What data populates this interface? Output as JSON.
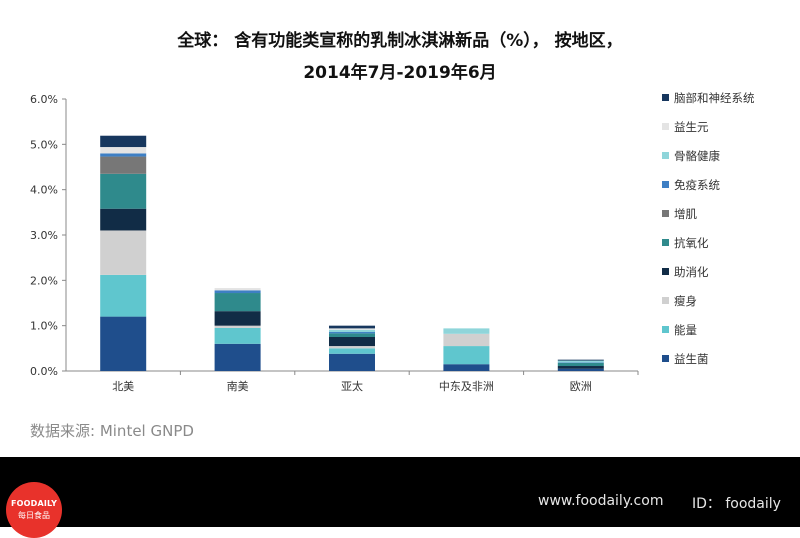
{
  "chart_data": {
    "type": "bar",
    "stacked": true,
    "title": "全球： 含有功能类宣称的乳制冰淇淋新品（%）， 按地区，",
    "subtitle": "2014年7月-2019年6月",
    "categories": [
      "北美",
      "南美",
      "亚太",
      "中东及非洲",
      "欧洲"
    ],
    "ylim": [
      0,
      6
    ],
    "yticks": [
      "0.0%",
      "1.0%",
      "2.0%",
      "3.0%",
      "4.0%",
      "5.0%",
      "6.0%"
    ],
    "grid": false,
    "legend_position": "right",
    "series": [
      {
        "name": "益生菌",
        "color": "#1f4e8c",
        "values": [
          1.2,
          0.6,
          0.38,
          0.15,
          0.05
        ]
      },
      {
        "name": "能量",
        "color": "#5fc6ce",
        "values": [
          0.92,
          0.35,
          0.12,
          0.4,
          0.0
        ]
      },
      {
        "name": "瘦身",
        "color": "#d0d0d0",
        "values": [
          0.98,
          0.05,
          0.05,
          0.27,
          0.0
        ]
      },
      {
        "name": "助消化",
        "color": "#112c46",
        "values": [
          0.48,
          0.32,
          0.2,
          0.0,
          0.06
        ]
      },
      {
        "name": "抗氧化",
        "color": "#2f8a8c",
        "values": [
          0.77,
          0.4,
          0.08,
          0.0,
          0.07
        ]
      },
      {
        "name": "增肌",
        "color": "#777777",
        "values": [
          0.38,
          0.0,
          0.0,
          0.0,
          0.0
        ]
      },
      {
        "name": "免疫系统",
        "color": "#3e7fc4",
        "values": [
          0.07,
          0.06,
          0.03,
          0.0,
          0.01
        ]
      },
      {
        "name": "骨骼健康",
        "color": "#8fd5da",
        "values": [
          0.0,
          0.0,
          0.05,
          0.12,
          0.04
        ]
      },
      {
        "name": "益生元",
        "color": "#e4e4e4",
        "values": [
          0.14,
          0.05,
          0.03,
          0.0,
          0.0
        ]
      },
      {
        "name": "脑部和神经系统",
        "color": "#17375e",
        "values": [
          0.25,
          0.0,
          0.06,
          0.0,
          0.02
        ]
      }
    ]
  },
  "source_text": "数据来源: Mintel GNPD",
  "footer": {
    "logo_line1": "FOODAILY",
    "logo_line2": "每日食品",
    "website": "www.foodaily.com",
    "id_text": "ID：  foodaily"
  }
}
